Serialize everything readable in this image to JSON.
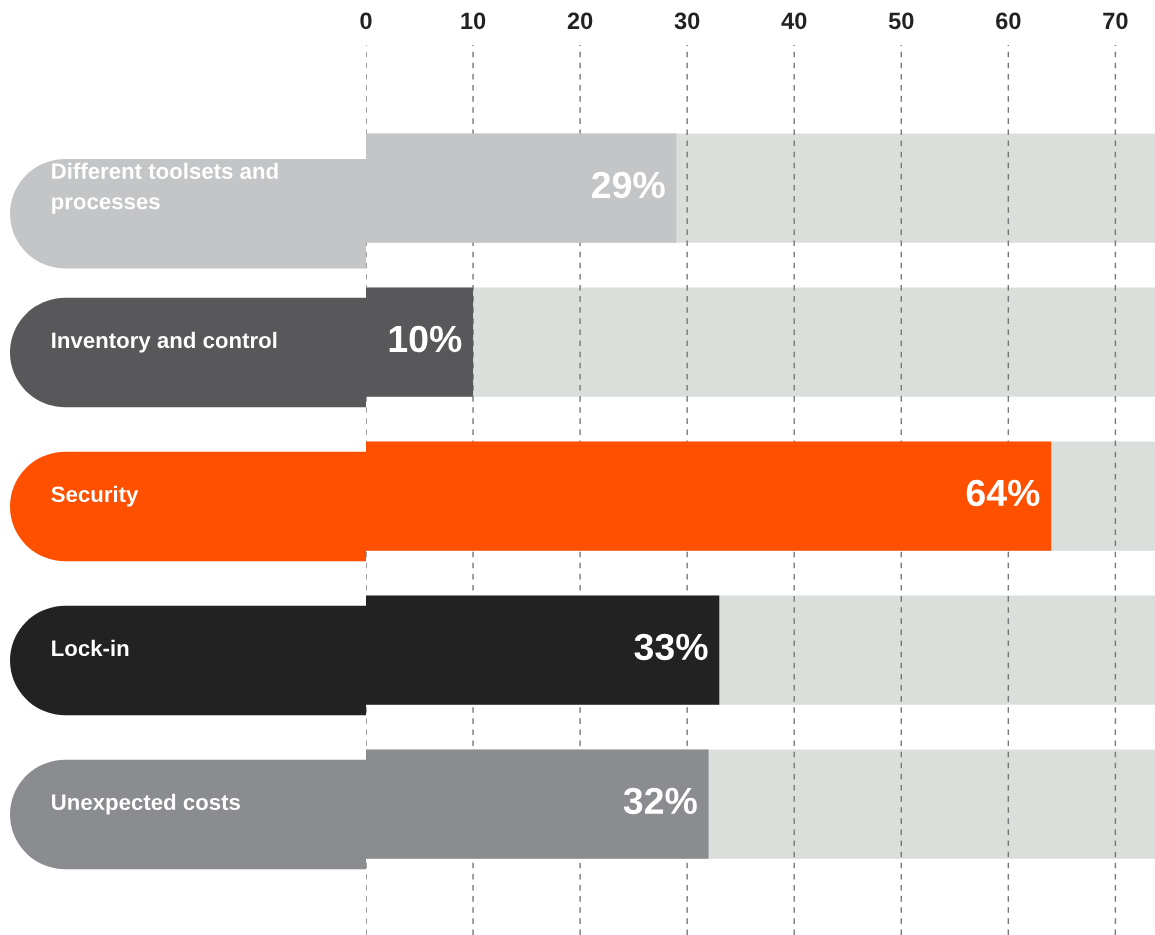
{
  "chart_data": {
    "type": "bar",
    "orientation": "horizontal",
    "categories": [
      "Different toolsets and\nprocesses",
      "Inventory and control",
      "Security",
      "Lock-in",
      "Unexpected costs"
    ],
    "values": [
      29,
      10,
      64,
      33,
      32
    ],
    "colors": [
      "#c4c5c7",
      "#58585a",
      "#ff5000",
      "#222222",
      "#8b8c90"
    ],
    "value_labels": [
      "29%",
      "10%",
      "64%",
      "33%",
      "32%"
    ],
    "xlim": [
      0,
      73.7
    ],
    "xticks": [
      0,
      10,
      20,
      30,
      40,
      50,
      60,
      70
    ],
    "grid": "x"
  }
}
